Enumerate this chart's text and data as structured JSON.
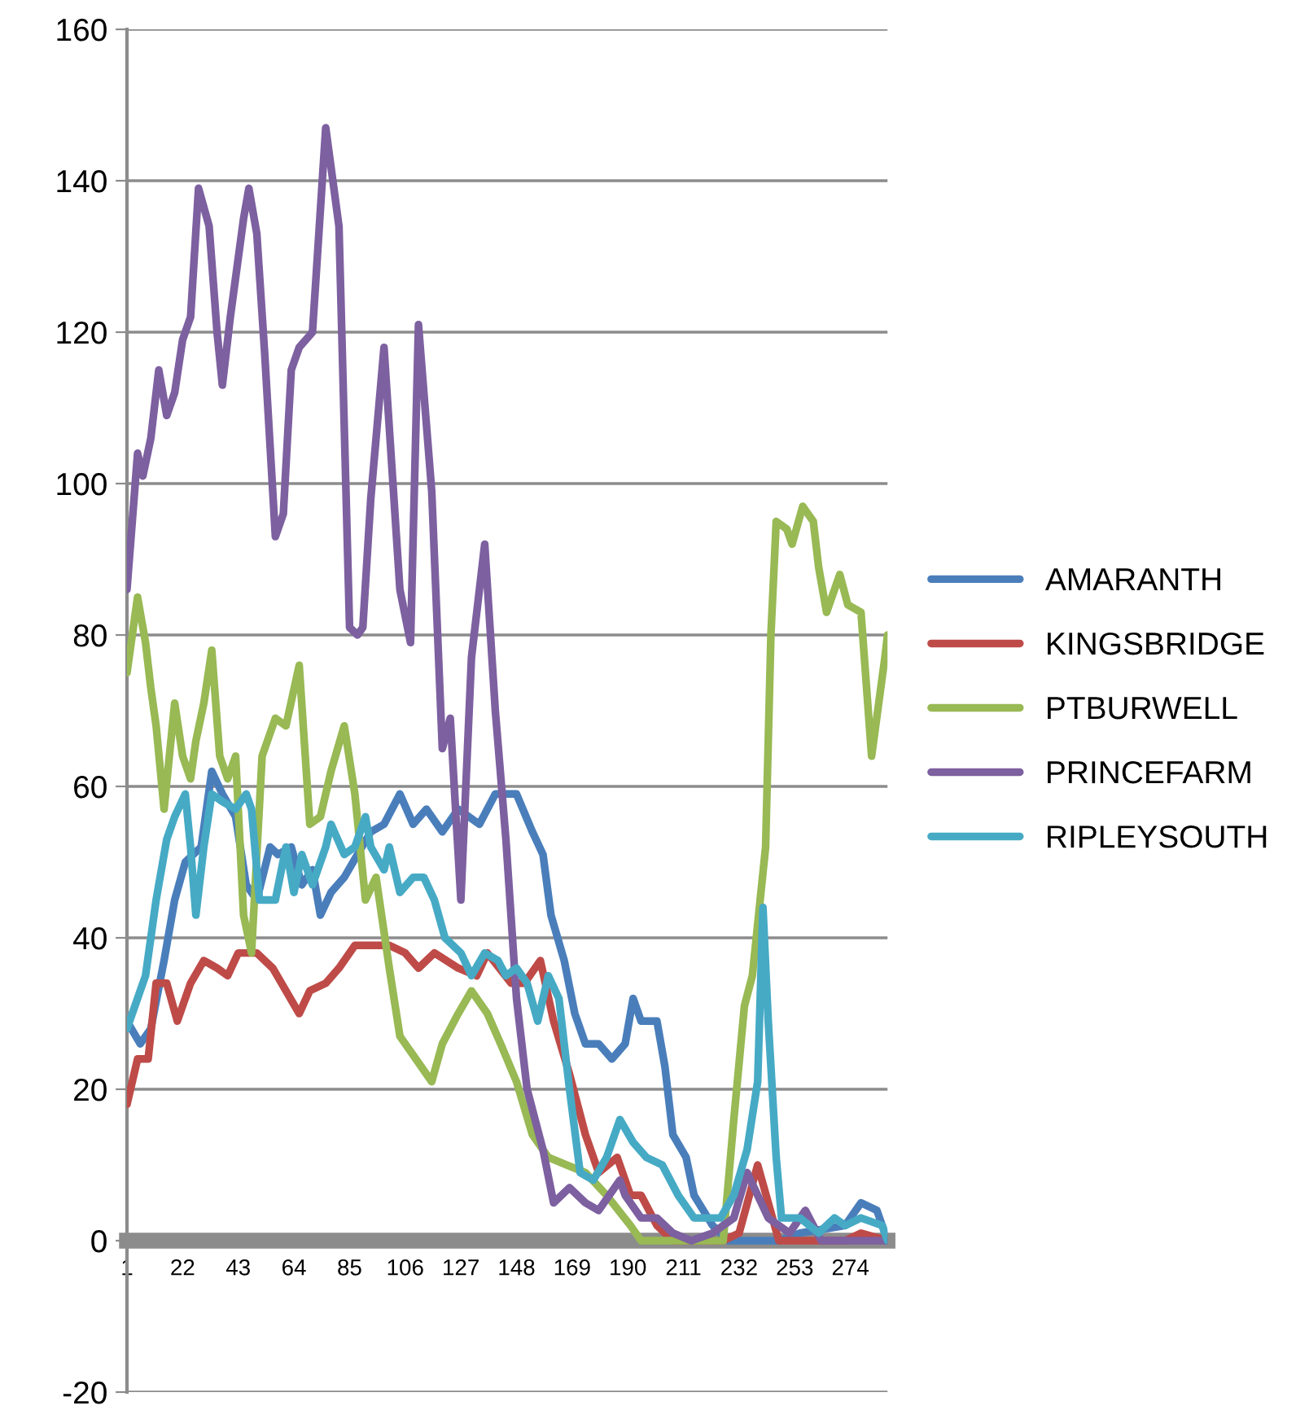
{
  "chart_data": {
    "type": "line",
    "xlim": [
      1,
      288
    ],
    "xticks": [
      1,
      22,
      43,
      64,
      85,
      106,
      127,
      148,
      169,
      190,
      211,
      232,
      253,
      274
    ],
    "ylim": [
      -20,
      160
    ],
    "yticks": [
      -20,
      0,
      20,
      40,
      60,
      80,
      100,
      120,
      140,
      160
    ],
    "grid": "y",
    "legend": "right",
    "marker": "none",
    "line_style": "solid",
    "series": [
      {
        "name": "AMARANTH",
        "color": "#4a7ebb",
        "x": [
          1,
          6,
          10,
          15,
          19,
          23,
          29,
          33,
          37,
          42,
          46,
          50,
          55,
          58,
          63,
          67,
          71,
          74,
          78,
          83,
          88,
          93,
          98,
          104,
          109,
          114,
          120,
          126,
          134,
          140,
          148,
          154,
          158,
          161,
          166,
          170,
          174,
          179,
          184,
          189,
          192,
          195,
          201,
          204,
          207,
          212,
          215,
          222,
          228,
          237,
          247,
          255,
          272,
          278,
          284,
          288
        ],
        "values": [
          29,
          26,
          28,
          37,
          45,
          50,
          52,
          62,
          59,
          56,
          47,
          45,
          52,
          51,
          52,
          47,
          49,
          43,
          46,
          48,
          51,
          54,
          55,
          59,
          55,
          57,
          54,
          57,
          55,
          59,
          59,
          54,
          51,
          43,
          37,
          30,
          26,
          26,
          24,
          26,
          32,
          29,
          29,
          23,
          14,
          11,
          6,
          2,
          0,
          0,
          0,
          1,
          2,
          5,
          4,
          0
        ]
      },
      {
        "name": "KINGSBRIDGE",
        "color": "#be4b48",
        "x": [
          1,
          5,
          9,
          12,
          16,
          20,
          25,
          30,
          35,
          39,
          43,
          50,
          56,
          61,
          66,
          70,
          76,
          81,
          87,
          93,
          100,
          106,
          111,
          117,
          126,
          133,
          137,
          146,
          151,
          157,
          162,
          168,
          174,
          179,
          186,
          191,
          195,
          201,
          207,
          226,
          232,
          239,
          243,
          247,
          255,
          272,
          278,
          288
        ],
        "values": [
          18,
          24,
          24,
          34,
          34,
          29,
          34,
          37,
          36,
          35,
          38,
          38,
          36,
          33,
          30,
          33,
          34,
          36,
          39,
          39,
          39,
          38,
          36,
          38,
          36,
          35,
          38,
          34,
          34,
          37,
          29,
          22,
          14,
          9,
          11,
          6,
          6,
          2,
          0,
          0,
          1,
          10,
          5,
          0,
          0,
          0,
          1,
          0
        ]
      },
      {
        "name": "PTBURWELL",
        "color": "#98b954",
        "x": [
          1,
          5,
          8,
          10,
          12,
          15,
          19,
          22,
          25,
          27,
          30,
          33,
          36,
          39,
          42,
          45,
          48,
          52,
          57,
          61,
          66,
          70,
          74,
          78,
          83,
          87,
          91,
          95,
          100,
          104,
          110,
          116,
          120,
          126,
          131,
          137,
          142,
          148,
          154,
          160,
          167,
          174,
          182,
          191,
          195,
          226,
          230,
          234,
          237,
          242,
          244,
          246,
          250,
          252,
          256,
          260,
          262,
          265,
          270,
          273,
          278,
          282,
          287,
          288
        ],
        "values": [
          75,
          85,
          79,
          73,
          68,
          57,
          71,
          64,
          61,
          66,
          71,
          78,
          64,
          61,
          64,
          43,
          38,
          64,
          69,
          68,
          76,
          55,
          56,
          62,
          68,
          59,
          45,
          48,
          36,
          27,
          24,
          21,
          26,
          30,
          33,
          30,
          26,
          21,
          14,
          11,
          10,
          9,
          6,
          2,
          0,
          0,
          16,
          31,
          35,
          52,
          80,
          95,
          94,
          92,
          97,
          95,
          89,
          83,
          88,
          84,
          83,
          64,
          77,
          80
        ]
      },
      {
        "name": "PRINCEFARM",
        "color": "#7d60a0",
        "x": [
          1,
          5,
          7,
          10,
          13,
          16,
          19,
          22,
          25,
          28,
          32,
          35,
          37,
          40,
          45,
          47,
          50,
          53,
          57,
          60,
          63,
          66,
          71,
          76,
          81,
          85,
          88,
          90,
          93,
          98,
          101,
          104,
          108,
          111,
          116,
          120,
          123,
          127,
          131,
          136,
          140,
          144,
          148,
          152,
          158,
          162,
          168,
          174,
          179,
          187,
          189,
          195,
          201,
          207,
          214,
          222,
          230,
          235,
          243,
          251,
          257,
          263,
          276,
          288
        ],
        "values": [
          86,
          104,
          101,
          106,
          115,
          109,
          112,
          119,
          122,
          139,
          134,
          120,
          113,
          122,
          135,
          139,
          133,
          117,
          93,
          96,
          115,
          118,
          120,
          147,
          134,
          81,
          80,
          81,
          98,
          118,
          102,
          86,
          79,
          121,
          99,
          65,
          69,
          45,
          77,
          92,
          70,
          53,
          32,
          20,
          12,
          5,
          7,
          5,
          4,
          8,
          6,
          3,
          3,
          1,
          0,
          1,
          3,
          9,
          3,
          1,
          4,
          0,
          0,
          0
        ]
      },
      {
        "name": "RIPLEYSOUTH",
        "color": "#46aac5",
        "x": [
          1,
          5,
          8,
          12,
          16,
          19,
          23,
          25,
          27,
          30,
          33,
          37,
          42,
          46,
          48,
          51,
          57,
          61,
          64,
          67,
          71,
          76,
          78,
          83,
          87,
          91,
          93,
          98,
          100,
          104,
          109,
          113,
          117,
          121,
          127,
          131,
          136,
          141,
          144,
          148,
          152,
          156,
          160,
          164,
          168,
          172,
          177,
          182,
          187,
          192,
          197,
          203,
          209,
          215,
          225,
          230,
          235,
          239,
          241,
          243,
          246,
          248,
          255,
          262,
          268,
          272,
          278,
          286,
          288
        ],
        "values": [
          28,
          32,
          35,
          45,
          53,
          56,
          59,
          52,
          43,
          52,
          59,
          58,
          57,
          59,
          57,
          45,
          45,
          52,
          46,
          51,
          47,
          52,
          55,
          51,
          52,
          56,
          52,
          49,
          52,
          46,
          48,
          48,
          45,
          40,
          38,
          35,
          38,
          37,
          35,
          36,
          34,
          29,
          35,
          32,
          20,
          9,
          8,
          11,
          16,
          13,
          11,
          10,
          6,
          3,
          3,
          6,
          12,
          21,
          44,
          29,
          11,
          3,
          3,
          1,
          3,
          2,
          3,
          2,
          0
        ]
      }
    ]
  }
}
